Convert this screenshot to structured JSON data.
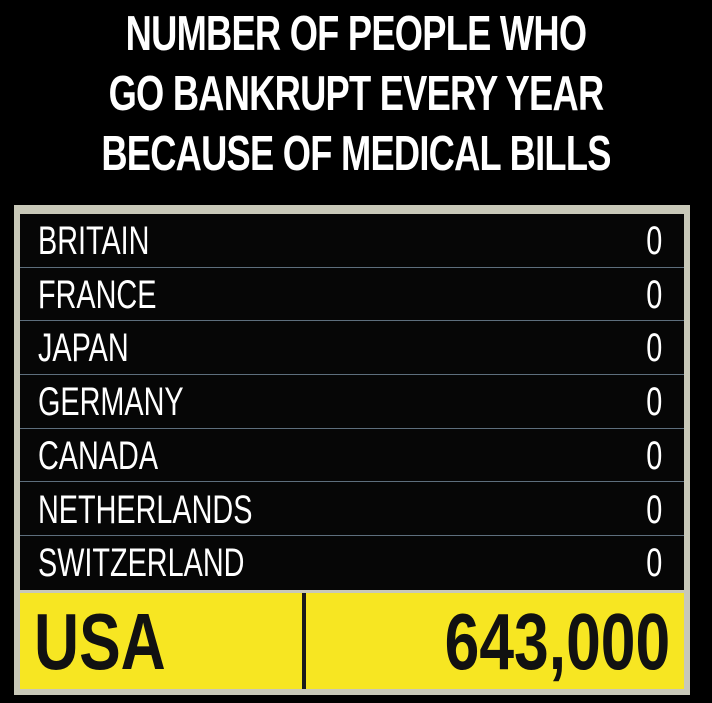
{
  "chart_data": {
    "type": "table",
    "title_lines": [
      "NUMBER OF PEOPLE WHO",
      "GO BANKRUPT EVERY YEAR",
      "BECAUSE OF MEDICAL BILLS"
    ],
    "rows": [
      {
        "country": "BRITAIN",
        "value": "0"
      },
      {
        "country": "FRANCE",
        "value": "0"
      },
      {
        "country": "JAPAN",
        "value": "0"
      },
      {
        "country": "GERMANY",
        "value": "0"
      },
      {
        "country": "CANADA",
        "value": "0"
      },
      {
        "country": "NETHERLANDS",
        "value": "0"
      },
      {
        "country": "SWITZERLAND",
        "value": "0"
      }
    ],
    "highlight": {
      "country": "USA",
      "value": "643,000"
    }
  },
  "colors": {
    "background": "#000000",
    "frame": "#c8c8b8",
    "row_divider": "#5d6e7c",
    "highlight_fill": "#f7e622",
    "highlight_text": "#111111",
    "text": "#ffffff"
  }
}
